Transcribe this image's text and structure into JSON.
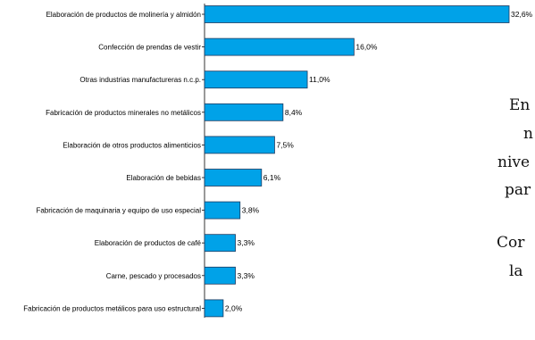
{
  "chart_data": {
    "type": "bar",
    "orientation": "horizontal",
    "categories": [
      "Elaboración de productos de molinería y almidón",
      "Confección de prendas de vestir",
      "Otras industrias manufactureras n.c.p.",
      "Fabricación de productos minerales no metálicos",
      "Elaboración de otros productos alimenticios",
      "Elaboración de bebidas",
      "Fabricación de maquinaria y equipo de uso especial",
      "Elaboración de productos de café",
      "Carne, pescado y procesados",
      "Fabricación de productos metálicos para uso estructural"
    ],
    "values": [
      32.6,
      16.0,
      11.0,
      8.4,
      7.5,
      6.1,
      3.8,
      3.3,
      3.3,
      2.0
    ],
    "value_labels": [
      "32,6%",
      "16,0%",
      "11,0%",
      "8,4%",
      "7,5%",
      "6,1%",
      "3,8%",
      "3,3%",
      "3,3%",
      "2,0%"
    ],
    "bar_color": "#00a2e8",
    "bar_stroke": "#1f3a5f",
    "grid": false,
    "legend": "none"
  },
  "side_text": [
    "En",
    "n",
    "nive",
    "par",
    "Cor",
    "la"
  ]
}
